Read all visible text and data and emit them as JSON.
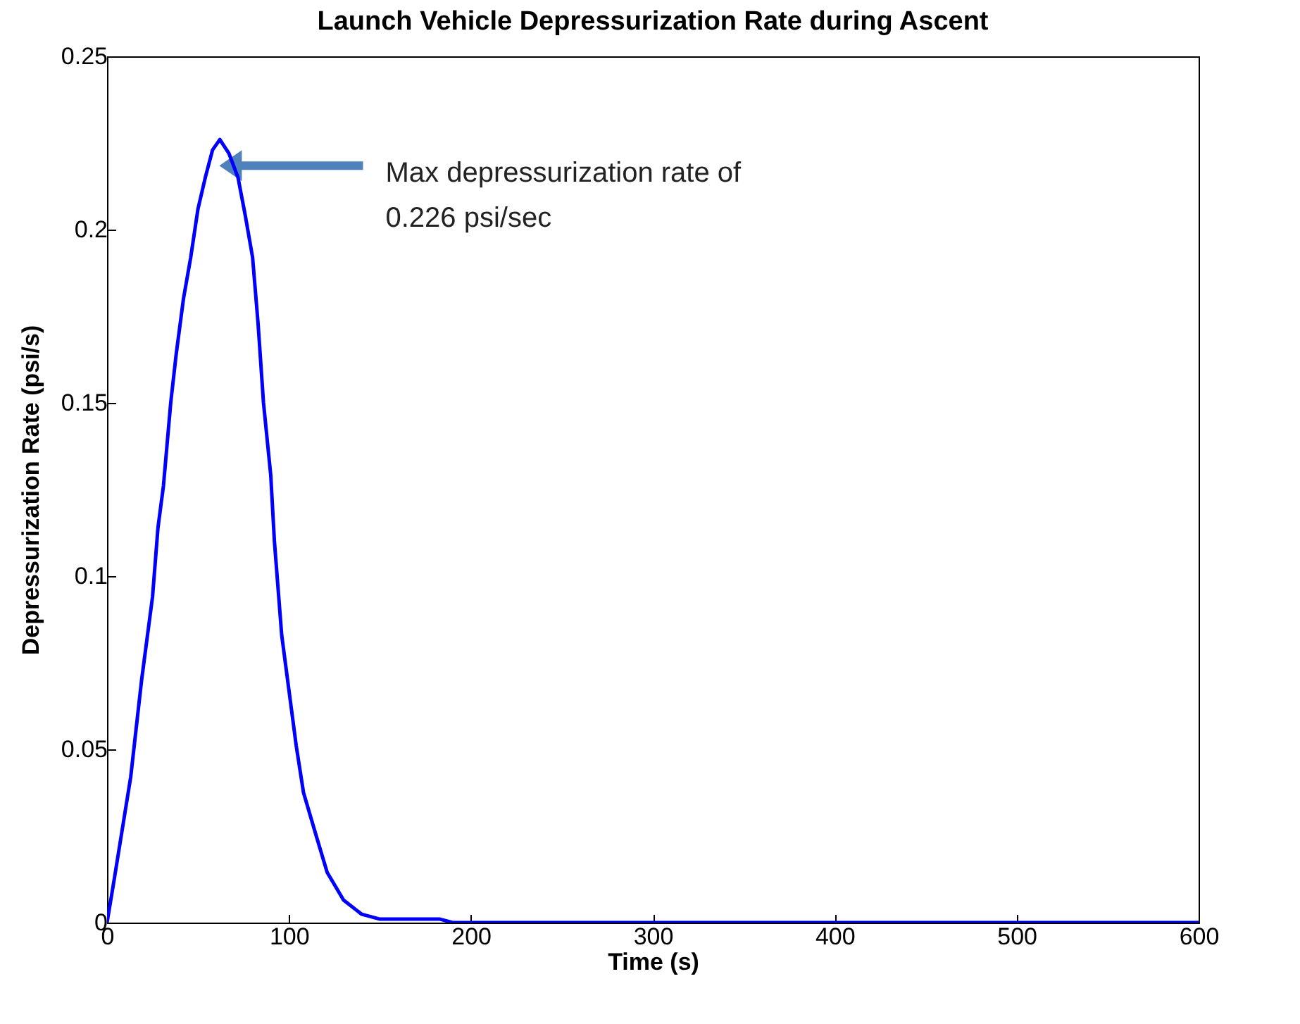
{
  "chart_data": {
    "type": "line",
    "title": "Launch Vehicle Depressurization Rate during Ascent",
    "xlabel": "Time (s)",
    "ylabel": "Depressurization Rate (psi/s)",
    "x": [
      0,
      3.8,
      13,
      19,
      25,
      28,
      31,
      35,
      38,
      42,
      46,
      50,
      54,
      58,
      62,
      67,
      72,
      76,
      80,
      83,
      86,
      90,
      92,
      96,
      100,
      104,
      108,
      115,
      121,
      130,
      140,
      150,
      183,
      190,
      600
    ],
    "series": [
      {
        "color": "#0000ff",
        "values": [
          0,
          0.012,
          0.042,
          0.07,
          0.094,
          0.114,
          0.126,
          0.15,
          0.164,
          0.18,
          0.192,
          0.206,
          0.215,
          0.223,
          0.226,
          0.222,
          0.215,
          0.204,
          0.192,
          0.173,
          0.15,
          0.129,
          0.11,
          0.083,
          0.067,
          0.051,
          0.0375,
          0.025,
          0.0145,
          0.0065,
          0.0024,
          0.001,
          0.001,
          0,
          0
        ]
      }
    ],
    "annotations": [
      "Max depressurization rate of\n0.226 psi/sec"
    ],
    "xlim": [
      0,
      600
    ],
    "xticks": [
      0,
      100,
      200,
      300,
      400,
      500,
      600
    ],
    "ylim": [
      0,
      0.25
    ],
    "yticks": [
      0,
      0.05,
      0.1,
      0.15,
      0.2,
      0.25
    ],
    "grid": false,
    "marker": "none",
    "line_style": "solid"
  }
}
